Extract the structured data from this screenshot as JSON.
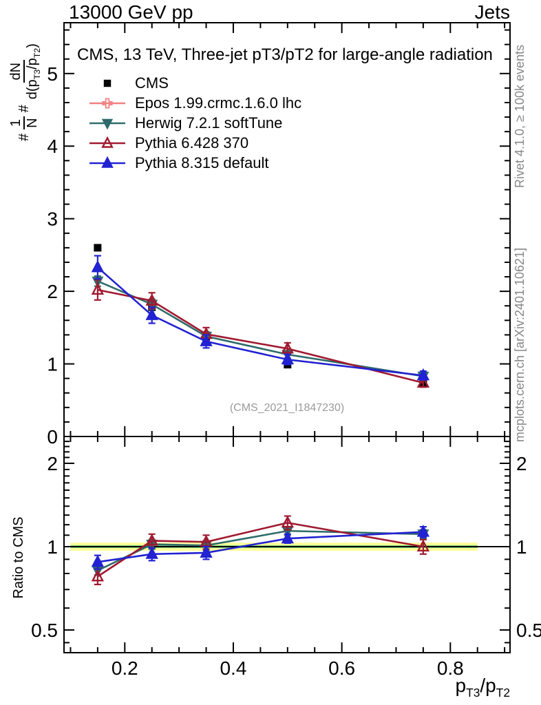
{
  "header": {
    "left": "13000 GeV pp",
    "right": "Jets"
  },
  "panel_title": "CMS, 13 TeV, Three-jet pT3/pT2 for large-angle radiation",
  "watermark": "(CMS_2021_I1847230)",
  "captions": {
    "rivet": "Rivet 4.1.0, ≥ 100k events",
    "mcplots": "mcplots.cern.ch [arXiv:2401.10621]"
  },
  "ylabel": {
    "hash1": "#",
    "frac1_num": "1",
    "frac1_den": "N",
    "hash2": "#",
    "frac2_num": "dN",
    "den_pre": "d(p",
    "den_sub1": "T3",
    "den_mid": "/p",
    "den_sub2": "T2",
    "den_post": ")"
  },
  "ratio_ylabel": "Ratio to CMS",
  "xlabel": {
    "p1": "p",
    "sub1": "T3",
    "p2": "/p",
    "sub2": "T2"
  },
  "chart_data": {
    "type": "scatter-line",
    "title": "CMS, 13 TeV, Three-jet pT3/pT2 for large-angle radiation",
    "xlabel": "p_T3/p_T2",
    "ylabel": "1/N dN/d(p_T3/p_T2)",
    "ratio_label": "Ratio to CMS",
    "legend_position": "top-left",
    "x_values": [
      0.15,
      0.25,
      0.35,
      0.5,
      0.75
    ],
    "xlim": [
      0.088,
      0.91
    ],
    "main": {
      "scale": "linear",
      "ylim": [
        0,
        5.7
      ],
      "y_minor_step": 0.2
    },
    "ratio": {
      "scale": "log",
      "ylim": [
        0.414,
        2.5
      ],
      "y_minor_ticks": [
        0.45,
        0.6,
        0.7,
        0.8,
        0.9,
        1.1,
        1.2,
        1.3,
        1.4,
        1.5,
        1.6,
        1.7,
        1.8,
        1.9,
        2.1,
        2.2,
        2.3,
        2.4
      ]
    },
    "tick_labels": {
      "x": [
        {
          "value": 0.2,
          "label": "0.2"
        },
        {
          "value": 0.4,
          "label": "0.4"
        },
        {
          "value": 0.6,
          "label": "0.6"
        },
        {
          "value": 0.8,
          "label": "0.8"
        }
      ],
      "x_minor": [
        0.1,
        0.15,
        0.25,
        0.3,
        0.35,
        0.45,
        0.5,
        0.55,
        0.65,
        0.7,
        0.75,
        0.85,
        0.9
      ],
      "main_y": [
        {
          "value": 0,
          "label": "0"
        },
        {
          "value": 1,
          "label": "1"
        },
        {
          "value": 2,
          "label": "2"
        },
        {
          "value": 3,
          "label": "3"
        },
        {
          "value": 4,
          "label": "4"
        },
        {
          "value": 5,
          "label": "5"
        }
      ],
      "ratio_y": [
        {
          "value": 0.5,
          "label": "0.5"
        },
        {
          "value": 1,
          "label": "1"
        },
        {
          "value": 2,
          "label": "2"
        }
      ]
    },
    "band": {
      "x0": 0.1,
      "x1": 0.85,
      "outer_lo": 0.966,
      "outer_hi": 1.034,
      "outer_color": "#ffff99",
      "inner_lo": 0.988,
      "inner_hi": 1.012,
      "inner_color": "#7fd87f",
      "line_value": 1,
      "line_color": "#000000"
    },
    "series": [
      {
        "name": "CMS",
        "legend": "CMS",
        "color": "#000000",
        "marker": "square",
        "filled": true,
        "line": false,
        "values": [
          2.6,
          1.78,
          1.37,
          0.99,
          0.74
        ],
        "errors": [
          0,
          0,
          0,
          0,
          0
        ],
        "ratio_values": null,
        "ratio_errors": null
      },
      {
        "name": "Epos 1.99.crmc.1.6.0 lhc",
        "legend": "Epos 1.99.crmc.1.6.0 lhc",
        "color": "#f08080",
        "marker": "cross",
        "filled": false,
        "line": true,
        "values": [],
        "errors": [],
        "ratio_values": [],
        "ratio_errors": []
      },
      {
        "name": "Herwig 7.2.1 softTune",
        "legend": "Herwig 7.2.1 softTune",
        "color": "#2e6b6b",
        "marker": "triangle-down",
        "filled": true,
        "line": true,
        "values": [
          2.14,
          1.82,
          1.38,
          1.13,
          0.83
        ],
        "errors": [
          0.07,
          0.07,
          0.06,
          0.05,
          0.04
        ],
        "ratio_values": [
          0.82,
          1.02,
          1.01,
          1.14,
          1.11
        ],
        "ratio_errors": [
          0.03,
          0.04,
          0.04,
          0.04,
          0.04
        ]
      },
      {
        "name": "Pythia 6.428 370",
        "legend": "Pythia 6.428 370",
        "color": "#a01a30",
        "marker": "triangle-up",
        "filled": false,
        "line": true,
        "values": [
          2.02,
          1.87,
          1.41,
          1.21,
          0.74
        ],
        "errors": [
          0.14,
          0.11,
          0.09,
          0.08,
          0.06
        ],
        "ratio_values": [
          0.78,
          1.05,
          1.04,
          1.22,
          1.0
        ],
        "ratio_errors": [
          0.05,
          0.06,
          0.06,
          0.07,
          0.06
        ]
      },
      {
        "name": "Pythia 8.315 default",
        "legend": "Pythia 8.315 default",
        "color": "#2222d2",
        "marker": "triangle-up",
        "filled": true,
        "line": true,
        "values": [
          2.33,
          1.67,
          1.31,
          1.06,
          0.84
        ],
        "errors": [
          0.16,
          0.11,
          0.09,
          0.07,
          0.06
        ],
        "ratio_values": [
          0.88,
          0.94,
          0.95,
          1.07,
          1.13
        ],
        "ratio_errors": [
          0.05,
          0.05,
          0.05,
          0.04,
          0.05
        ]
      }
    ]
  }
}
